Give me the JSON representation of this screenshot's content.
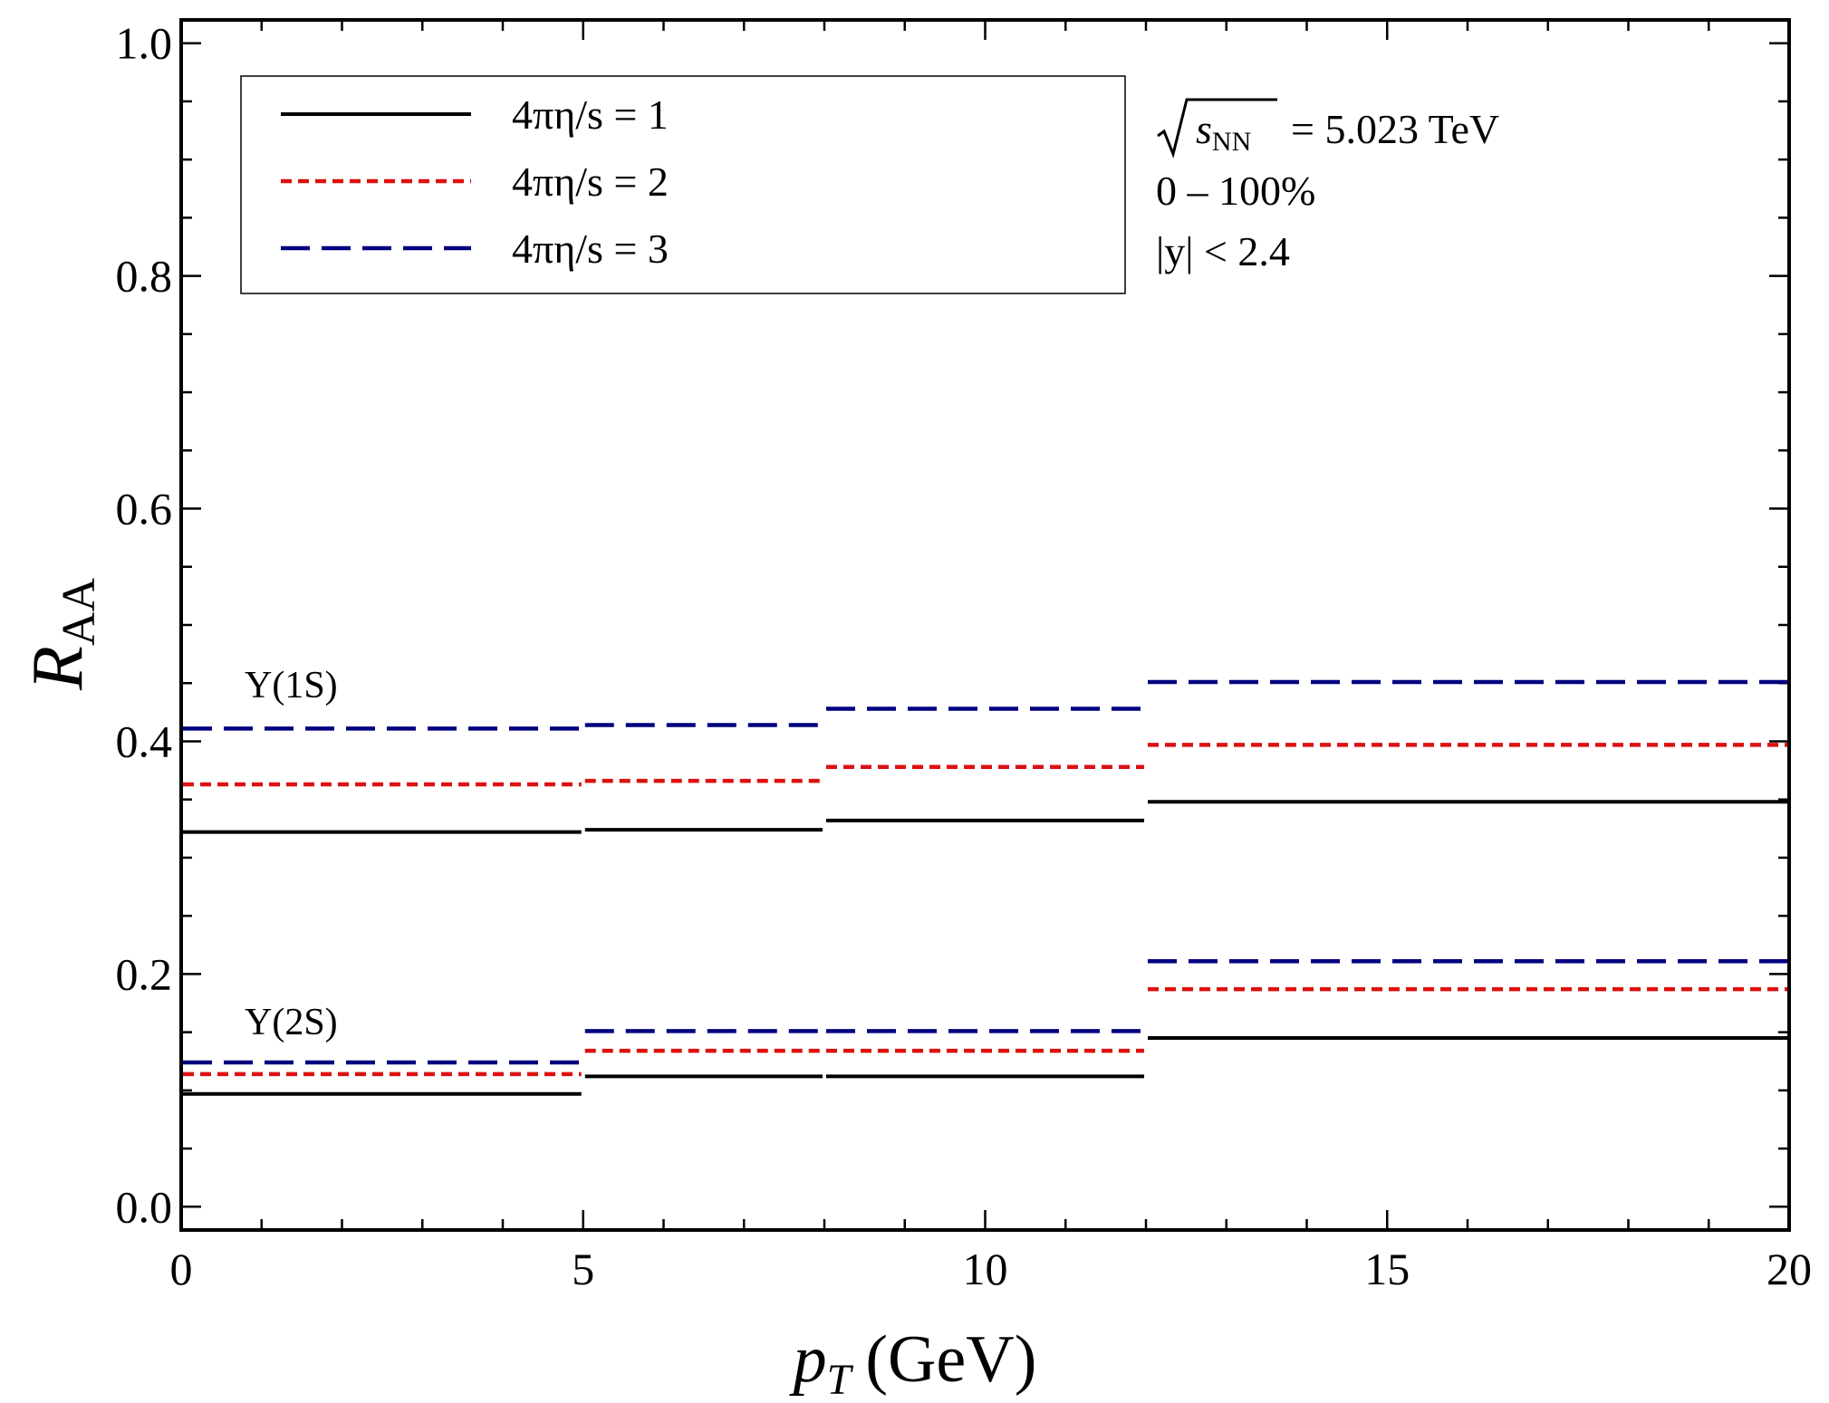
{
  "chart_data": {
    "type": "line",
    "xlabel": {
      "main": "p",
      "sub": "T",
      "unit": "(GeV)"
    },
    "ylabel": {
      "main": "R",
      "sub": "AA"
    },
    "xlim": [
      0,
      20
    ],
    "ylim": [
      -0.02,
      1.02
    ],
    "x_ticks": [
      0,
      5,
      10,
      15,
      20
    ],
    "x_tick_labels": [
      "0",
      "5",
      "10",
      "15",
      "20"
    ],
    "y_ticks": [
      0.0,
      0.2,
      0.4,
      0.6,
      0.8,
      1.0
    ],
    "y_tick_labels": [
      "0.0",
      "0.2",
      "0.4",
      "0.6",
      "0.8",
      "1.0"
    ],
    "grid": false,
    "legend_position": "top-left",
    "bins": [
      [
        0,
        5
      ],
      [
        5,
        8
      ],
      [
        8,
        12
      ],
      [
        12,
        20
      ]
    ],
    "series": [
      {
        "name": "4πη/s = 1",
        "state": "Υ(1S)",
        "color": "#000000",
        "style": "solid",
        "values": [
          0.322,
          0.324,
          0.332,
          0.348
        ]
      },
      {
        "name": "4πη/s = 2",
        "state": "Υ(1S)",
        "color": "#dd1111",
        "style": "dotted",
        "values": [
          0.363,
          0.366,
          0.378,
          0.397
        ]
      },
      {
        "name": "4πη/s = 3",
        "state": "Υ(1S)",
        "color": "#00007f",
        "style": "dashed",
        "values": [
          0.411,
          0.414,
          0.428,
          0.451
        ]
      },
      {
        "name": "4πη/s = 1",
        "state": "Υ(2S)",
        "color": "#000000",
        "style": "solid",
        "values": [
          0.097,
          0.112,
          0.112,
          0.145
        ]
      },
      {
        "name": "4πη/s = 2",
        "state": "Υ(2S)",
        "color": "#dd1111",
        "style": "dotted",
        "values": [
          0.114,
          0.134,
          0.134,
          0.187
        ]
      },
      {
        "name": "4πη/s = 3",
        "state": "Υ(2S)",
        "color": "#00007f",
        "style": "dashed",
        "values": [
          0.124,
          0.151,
          0.151,
          0.211
        ]
      }
    ],
    "legend": [
      {
        "label": "4πη/s = 1",
        "color": "#000000",
        "style": "solid"
      },
      {
        "label": "4πη/s = 2",
        "color": "#dd1111",
        "style": "dotted"
      },
      {
        "label": "4πη/s = 3",
        "color": "#00007f",
        "style": "dashed"
      }
    ],
    "annotations": {
      "sqrt_s_sub": "NN",
      "energy": "= 5.023 TeV",
      "centrality": "0 – 100%",
      "rapidity": "|y| < 2.4",
      "state_1s": "Υ(1S)",
      "state_2s": "Υ(2S)"
    }
  }
}
